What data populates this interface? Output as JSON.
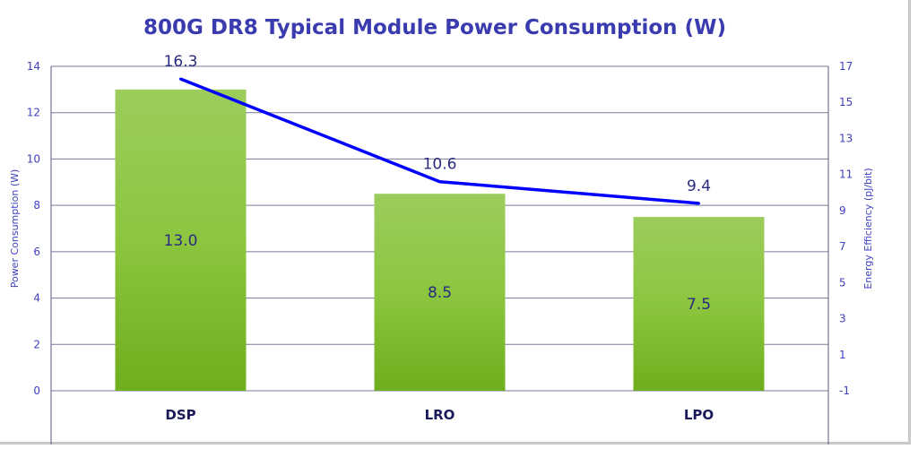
{
  "chart_data": {
    "type": "bar",
    "title": "800G DR8 Typical Module Power Consumption (W)",
    "categories": [
      "DSP",
      "LRO",
      "LPO"
    ],
    "series": [
      {
        "name": "Power Consumption (W)",
        "type": "bar",
        "axis": "left",
        "values": [
          13.0,
          8.5,
          7.5
        ],
        "labels": [
          "13.0",
          "8.5",
          "7.5"
        ],
        "color": "#8cc63f"
      },
      {
        "name": "Energy Efficiency (pJ/bit)",
        "type": "line",
        "axis": "right",
        "values": [
          16.3,
          10.6,
          9.4
        ],
        "labels": [
          "16.3",
          "10.6",
          "9.4"
        ],
        "color": "#0000ff"
      }
    ],
    "ylabel": "Power Consumption (W)",
    "ylim": [
      0,
      14
    ],
    "yticks": [
      "0",
      "2",
      "4",
      "6",
      "8",
      "10",
      "12",
      "14"
    ],
    "y2label": "Energy Efficiency (pJ/bit)",
    "y2lim": [
      -1,
      17
    ],
    "y2ticks": [
      "-1",
      "1",
      "3",
      "5",
      "7",
      "9",
      "11",
      "13",
      "15",
      "17"
    ],
    "grid": true,
    "legend": "none"
  }
}
